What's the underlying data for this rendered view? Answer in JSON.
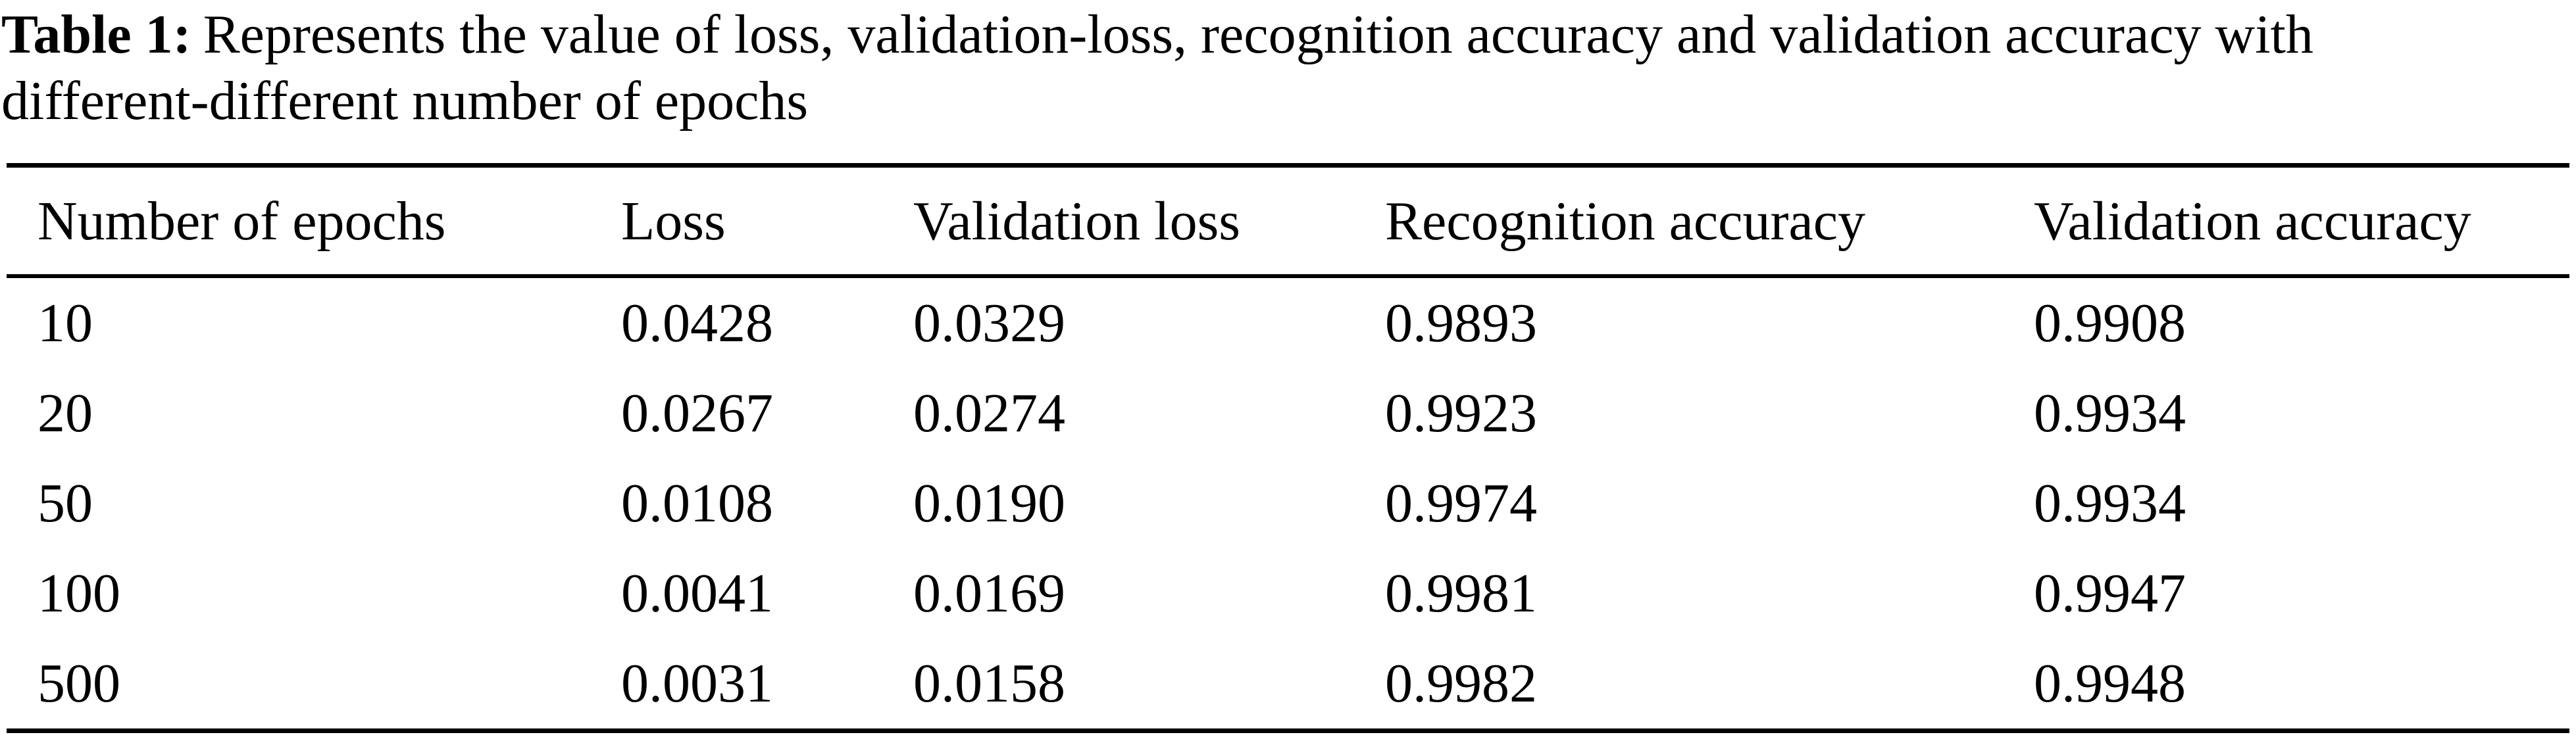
{
  "caption": {
    "label": "Table 1:",
    "line1_rest": "Represents the value of loss, validation-loss, recognition accuracy and validation accuracy with",
    "line2": "different-different number of epochs"
  },
  "table": {
    "columns": [
      "Number of epochs",
      "Loss",
      "Validation loss",
      "Recognition accuracy",
      "Validation accuracy"
    ],
    "rows": [
      {
        "epochs": "10",
        "loss": "0.0428",
        "validation_loss": "0.0329",
        "recognition_accuracy": "0.9893",
        "validation_accuracy": "0.9908"
      },
      {
        "epochs": "20",
        "loss": "0.0267",
        "validation_loss": "0.0274",
        "recognition_accuracy": "0.9923",
        "validation_accuracy": "0.9934"
      },
      {
        "epochs": "50",
        "loss": "0.0108",
        "validation_loss": "0.0190",
        "recognition_accuracy": "0.9974",
        "validation_accuracy": "0.9934"
      },
      {
        "epochs": "100",
        "loss": "0.0041",
        "validation_loss": "0.0169",
        "recognition_accuracy": "0.9981",
        "validation_accuracy": "0.9947"
      },
      {
        "epochs": "500",
        "loss": "0.0031",
        "validation_loss": "0.0158",
        "recognition_accuracy": "0.9982",
        "validation_accuracy": "0.9948"
      }
    ]
  },
  "colors": {
    "text": "#000000",
    "background": "#ffffff",
    "rule": "#000000"
  }
}
